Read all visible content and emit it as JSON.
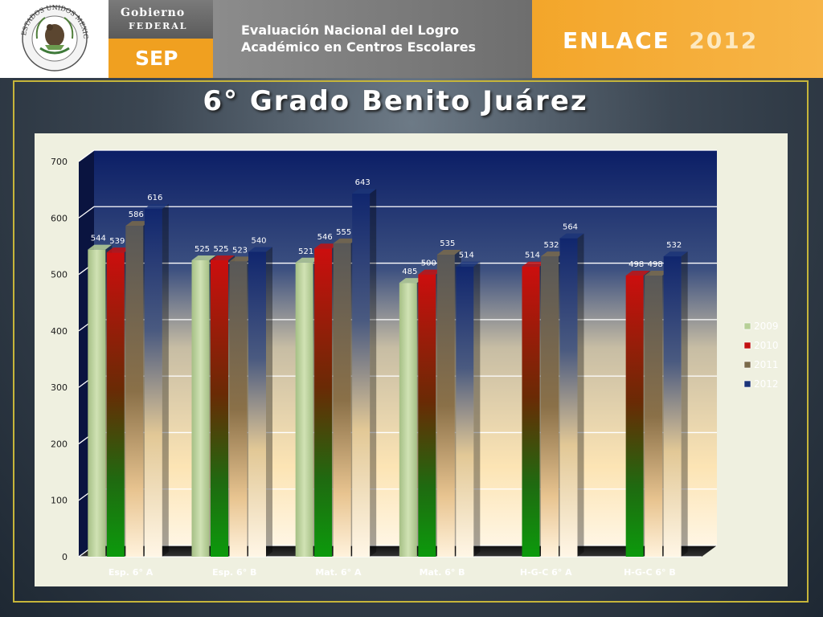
{
  "header": {
    "gobierno_line1": "Gobierno",
    "gobierno_line2": "FEDERAL",
    "sep_label": "SEP",
    "eval_line1": "Evaluación Nacional del Logro",
    "eval_line2": "Académico en Centros Escolares",
    "enlace_word": "ENLACE",
    "enlace_year": "2012",
    "seal_icon": "mexican-coat-of-arms-icon",
    "seal_text": "ESTADOS UNIDOS MEXICANOS"
  },
  "slide": {
    "title": "6° Grado Benito Juárez"
  },
  "chart_data": {
    "type": "bar",
    "title": "6° Grado Benito Juárez",
    "xlabel": "",
    "ylabel": "",
    "ylim": [
      0,
      700
    ],
    "yticks": [
      0,
      100,
      200,
      300,
      400,
      500,
      600,
      700
    ],
    "grid": true,
    "legend": "right",
    "categories": [
      "Esp. 6° A",
      "Esp. 6° B",
      "Mat. 6° A",
      "Mat. 6° B",
      "H-G-C 6° A",
      "H-G-C 6° B"
    ],
    "series": [
      {
        "name": "2009",
        "color": "#b6cf96",
        "values": [
          544,
          525,
          521,
          485,
          null,
          null
        ]
      },
      {
        "name": "2010",
        "color": "#c21010",
        "values": [
          539,
          525,
          546,
          500,
          514,
          498
        ]
      },
      {
        "name": "2011",
        "color": "#7a6a4a",
        "values": [
          586,
          523,
          555,
          535,
          532,
          498
        ]
      },
      {
        "name": "2012",
        "color": "#1b3478",
        "values": [
          616,
          540,
          643,
          514,
          564,
          532
        ]
      }
    ]
  }
}
